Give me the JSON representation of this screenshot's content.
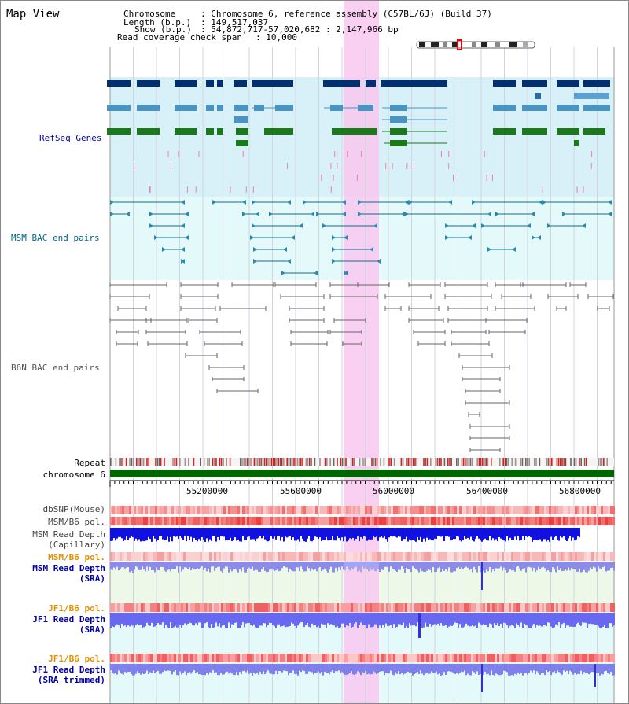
{
  "header": {
    "title": "Map View",
    "chromosome_key": "Chromosome",
    "chromosome_value": ": Chromosome 6, reference assembly (C57BL/6J) (Build 37)",
    "length_key": "Length (b.p.)",
    "length_value": ": 149,517,037",
    "show_key": "Show (b.p.)",
    "show_value": ": 54,872,717-57,020,682 : 2,147,966 bp",
    "coverage_key": "Read coverage check span",
    "coverage_value": ": 10,000"
  },
  "tracks": {
    "refseq": "RefSeq Genes",
    "msm_bac": "MSM BAC end pairs",
    "b6n_bac": "B6N BAC end pairs",
    "repeat": "Repeat",
    "chromosome": "chromosome 6",
    "dbsnp": "dbSNP(Mouse)",
    "msm_b6_pol_1": "MSM/B6 pol.",
    "msm_read_depth_cap_1": "MSM Read Depth",
    "msm_read_depth_cap_2": "(Capillary)",
    "msm_b6_pol_2": "MSM/B6 pol.",
    "msm_read_depth_sra_1": "MSM Read Depth",
    "msm_read_depth_sra_2": "(SRA)",
    "jf1_b6_pol_1": "JF1/B6 pol.",
    "jf1_read_depth_sra_1": "JF1 Read Depth",
    "jf1_read_depth_sra_2": "(SRA)",
    "jf1_b6_pol_2": "JF1/B6 pol.",
    "jf1_read_depth_trim_1": "JF1 Read Depth",
    "jf1_read_depth_trim_2": "(SRA trimmed)"
  },
  "axis": {
    "ticks": [
      "55200000",
      "55600000",
      "56000000",
      "56400000",
      "56800000"
    ]
  },
  "colors": {
    "refseq_text": "#0000aa",
    "msm_bac_text": "#006688",
    "b6n_bac_text": "#555555",
    "orange_text": "#e09000",
    "blue_text": "#0000aa",
    "highlight": "#f8c8f0",
    "refseq_bg": "#d8f0f8",
    "msm_bg": "#e4fafa",
    "chromosome_green": "#006600"
  }
}
